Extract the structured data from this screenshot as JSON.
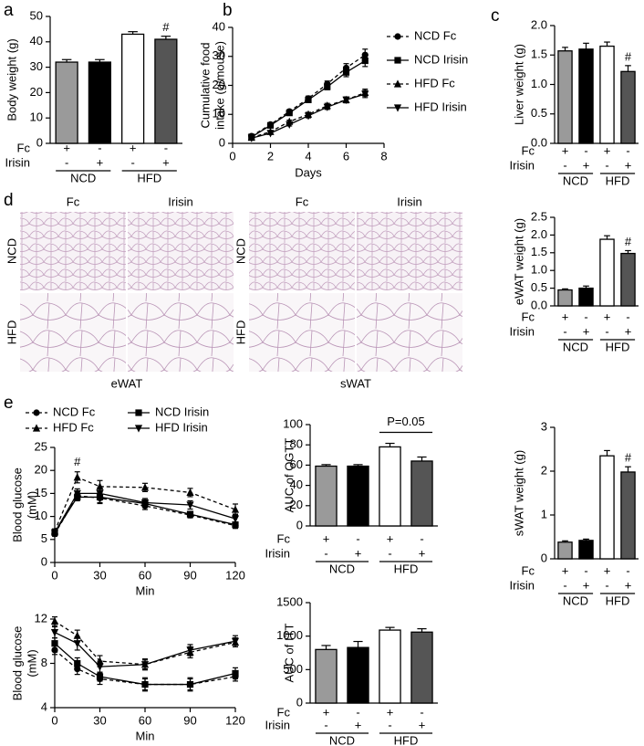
{
  "histology": {
    "panel": "d",
    "panels": [
      {
        "tissue": "eWAT",
        "columns": [
          "Fc",
          "Irisin"
        ],
        "rows": [
          "NCD",
          "HFD"
        ]
      },
      {
        "tissue": "sWAT",
        "columns": [
          "Fc",
          "Irisin"
        ],
        "rows": [
          "NCD",
          "HFD"
        ]
      }
    ]
  },
  "chart_data": [
    {
      "type": "bar",
      "panel": "a",
      "ylabel": "Body weight (g)",
      "values": [
        32,
        32,
        43,
        41
      ],
      "errors": [
        1,
        1,
        1,
        1.2
      ],
      "colors": [
        "#9a9a9a",
        "#000000",
        "#ffffff",
        "#555555"
      ],
      "ylim": [
        0,
        50
      ],
      "yticks": [
        0,
        10,
        20,
        30,
        40,
        50
      ],
      "treatments": [
        {
          "name": "Fc",
          "marks": [
            "+",
            "-",
            "+",
            "-"
          ]
        },
        {
          "name": "Irisin",
          "marks": [
            "-",
            "+",
            "-",
            "+"
          ]
        }
      ],
      "groups": [
        "NCD",
        "HFD"
      ],
      "annotations": [
        {
          "text": "#",
          "index": 3
        }
      ]
    },
    {
      "type": "line",
      "panel": "b",
      "ylabel": [
        "Cumulative food",
        "intake (g/mouse)"
      ],
      "xlabel": "Days",
      "x": [
        1,
        2,
        3,
        4,
        5,
        6,
        7
      ],
      "xlim": [
        0,
        8
      ],
      "xticks": [
        0,
        2,
        4,
        6,
        8
      ],
      "ylim": [
        0,
        40
      ],
      "yticks": [
        0,
        10,
        20,
        30,
        40
      ],
      "legend": "right",
      "series": [
        {
          "name": "NCD Fc",
          "color": "#000000",
          "marker": "circle",
          "dash": true,
          "values": [
            2.5,
            6.5,
            11,
            15.5,
            20.5,
            26,
            30.5
          ],
          "errors": [
            0.3,
            0.4,
            0.6,
            0.8,
            1,
            1.5,
            2
          ]
        },
        {
          "name": "NCD Irisin",
          "color": "#000000",
          "marker": "square",
          "dash": false,
          "values": [
            2.2,
            6.2,
            10.5,
            15,
            19.5,
            24.5,
            28.5
          ],
          "errors": [
            0.3,
            0.4,
            0.6,
            0.8,
            1,
            1.5,
            2
          ]
        },
        {
          "name": "HFD Fc",
          "color": "#000000",
          "marker": "triangle",
          "dash": true,
          "values": [
            2,
            4,
            7.5,
            10,
            13,
            15,
            17.5
          ],
          "errors": [
            0.2,
            0.3,
            0.5,
            0.7,
            0.8,
            1,
            1.2
          ]
        },
        {
          "name": "HFD Irisin",
          "color": "#000000",
          "marker": "triangle-down",
          "dash": false,
          "values": [
            1.8,
            3.5,
            6.5,
            9.5,
            12.5,
            15,
            17
          ],
          "errors": [
            0.2,
            0.3,
            0.5,
            0.7,
            0.8,
            1,
            1.2
          ]
        }
      ]
    },
    {
      "type": "bar",
      "panel": "c",
      "ylabel": "Liver weight (g)",
      "values": [
        1.57,
        1.6,
        1.65,
        1.22
      ],
      "errors": [
        0.06,
        0.1,
        0.07,
        0.1
      ],
      "colors": [
        "#9a9a9a",
        "#000000",
        "#ffffff",
        "#555555"
      ],
      "ylim": [
        0,
        2
      ],
      "yticks": [
        {
          "value": 0,
          "label": "0.0"
        },
        0.5,
        {
          "value": 1,
          "label": "1.0"
        },
        1.5,
        {
          "value": 2,
          "label": "2.0"
        }
      ],
      "treatments": [
        {
          "name": "Fc",
          "marks": [
            "+",
            "-",
            "+",
            "-"
          ]
        },
        {
          "name": "Irisin",
          "marks": [
            "-",
            "+",
            "-",
            "+"
          ]
        }
      ],
      "groups": [
        "NCD",
        "HFD"
      ],
      "annotations": [
        {
          "text": "#",
          "index": 3
        }
      ]
    },
    {
      "type": "bar",
      "ylabel": "eWAT weight (g)",
      "values": [
        0.45,
        0.5,
        1.88,
        1.48
      ],
      "errors": [
        0.03,
        0.06,
        0.1,
        0.08
      ],
      "colors": [
        "#9a9a9a",
        "#000000",
        "#ffffff",
        "#555555"
      ],
      "ylim": [
        0,
        2.5
      ],
      "yticks": [
        {
          "value": 0,
          "label": "0.0"
        },
        0.5,
        {
          "value": 1,
          "label": "1.0"
        },
        1.5,
        {
          "value": 2,
          "label": "2.0"
        },
        2.5
      ],
      "treatments": [
        {
          "name": "Fc",
          "marks": [
            "+",
            "-",
            "+",
            "-"
          ]
        },
        {
          "name": "Irisin",
          "marks": [
            "-",
            "+",
            "-",
            "+"
          ]
        }
      ],
      "groups": [
        "NCD",
        "HFD"
      ],
      "annotations": [
        {
          "text": "#",
          "index": 3
        }
      ]
    },
    {
      "type": "line",
      "panel": "e",
      "ylabel": [
        "Blood glucose",
        "(mM)"
      ],
      "xlabel": "Min",
      "x": [
        0,
        15,
        30,
        60,
        90,
        120
      ],
      "xlim": [
        0,
        120
      ],
      "xticks": [
        0,
        30,
        60,
        90,
        120
      ],
      "ylim": [
        0,
        25
      ],
      "yticks": [
        0,
        5,
        10,
        15,
        20,
        25
      ],
      "legend": "top",
      "annotations": [
        {
          "text": "#",
          "index": 1
        }
      ],
      "series": [
        {
          "name": "NCD Fc",
          "color": "#000000",
          "marker": "circle",
          "dash": true,
          "values": [
            6.2,
            14.5,
            14,
            12.3,
            10.3,
            8
          ],
          "errors": [
            0.5,
            0.8,
            1.2,
            0.8,
            0.6,
            0.6
          ]
        },
        {
          "name": "HFD Fc",
          "color": "#000000",
          "marker": "triangle",
          "dash": true,
          "values": [
            6.8,
            18.5,
            16.5,
            16.3,
            15.2,
            11.5
          ],
          "errors": [
            0.5,
            1.2,
            1.3,
            0.9,
            0.9,
            1.2
          ]
        },
        {
          "name": "NCD Irisin",
          "color": "#000000",
          "marker": "square",
          "dash": false,
          "values": [
            6.5,
            14.2,
            14.2,
            12.8,
            10.5,
            8.2
          ],
          "errors": [
            0.5,
            0.8,
            1.2,
            0.8,
            0.6,
            0.6
          ]
        },
        {
          "name": "HFD Irisin",
          "color": "#000000",
          "marker": "triangle-down",
          "dash": false,
          "values": [
            6.5,
            15,
            15,
            13,
            12.5,
            9.5
          ],
          "errors": [
            0.5,
            1,
            1.3,
            0.9,
            0.9,
            1
          ]
        }
      ]
    },
    {
      "type": "bar",
      "ylabel": "AUC of OGTT",
      "values": [
        59,
        59,
        78,
        64
      ],
      "errors": [
        1.5,
        1.5,
        3.5,
        4
      ],
      "colors": [
        "#9a9a9a",
        "#000000",
        "#ffffff",
        "#555555"
      ],
      "ylim": [
        0,
        100
      ],
      "yticks": [
        0,
        20,
        40,
        60,
        80,
        100
      ],
      "treatments": [
        {
          "name": "Fc",
          "marks": [
            "+",
            "-",
            "+",
            "-"
          ]
        },
        {
          "name": "Irisin",
          "marks": [
            "-",
            "+",
            "-",
            "+"
          ]
        }
      ],
      "groups": [
        "NCD",
        "HFD"
      ],
      "annotations": [
        {
          "text": "P=0.05",
          "bracket": [
            2,
            3
          ]
        }
      ]
    },
    {
      "type": "bar",
      "ylabel": "sWAT weight (g)",
      "values": [
        0.38,
        0.42,
        2.35,
        1.98
      ],
      "errors": [
        0.03,
        0.03,
        0.12,
        0.12
      ],
      "colors": [
        "#9a9a9a",
        "#000000",
        "#ffffff",
        "#555555"
      ],
      "ylim": [
        0,
        3
      ],
      "yticks": [
        0,
        1,
        2,
        3
      ],
      "treatments": [
        {
          "name": "Fc",
          "marks": [
            "+",
            "-",
            "+",
            "-"
          ]
        },
        {
          "name": "Irisin",
          "marks": [
            "-",
            "+",
            "-",
            "+"
          ]
        }
      ],
      "groups": [
        "NCD",
        "HFD"
      ],
      "annotations": [
        {
          "text": "#",
          "index": 3
        }
      ]
    },
    {
      "type": "line",
      "ylabel": [
        "Blood glucose",
        "(mM)"
      ],
      "xlabel": "Min",
      "x": [
        0,
        15,
        30,
        60,
        90,
        120
      ],
      "xlim": [
        0,
        120
      ],
      "xticks": [
        0,
        30,
        60,
        90,
        120
      ],
      "ylim": [
        4,
        12
      ],
      "yticks": [
        4,
        8,
        12
      ],
      "series": [
        {
          "color": "#000000",
          "marker": "circle",
          "dash": true,
          "values": [
            9.2,
            7.5,
            6.6,
            6.1,
            6.1,
            6.8
          ],
          "errors": [
            0.4,
            0.5,
            0.5,
            0.5,
            0.5,
            0.4
          ]
        },
        {
          "color": "#000000",
          "marker": "triangle",
          "dash": true,
          "values": [
            11.8,
            10.5,
            8.2,
            7.9,
            9,
            9.9
          ],
          "errors": [
            0.4,
            0.5,
            0.5,
            0.4,
            0.5,
            0.4
          ]
        },
        {
          "color": "#000000",
          "marker": "square",
          "dash": false,
          "values": [
            9.8,
            8,
            6.8,
            6.1,
            6.1,
            7.1
          ],
          "errors": [
            0.5,
            0.5,
            0.4,
            0.6,
            0.6,
            0.5
          ]
        },
        {
          "color": "#000000",
          "marker": "triangle-down",
          "dash": false,
          "values": [
            10.8,
            9.8,
            7.7,
            7.9,
            9.2,
            10
          ],
          "errors": [
            0.5,
            0.6,
            0.5,
            0.5,
            0.5,
            0.5
          ]
        }
      ]
    },
    {
      "type": "bar",
      "ylabel": "AUC of ITT",
      "values": [
        800,
        830,
        1090,
        1060
      ],
      "errors": [
        60,
        90,
        40,
        50
      ],
      "colors": [
        "#9a9a9a",
        "#000000",
        "#ffffff",
        "#555555"
      ],
      "ylim": [
        0,
        1500
      ],
      "yticks": [
        0,
        500,
        1000,
        1500
      ],
      "treatments": [
        {
          "name": "Fc",
          "marks": [
            "+",
            "-",
            "+",
            "-"
          ]
        },
        {
          "name": "Irisin",
          "marks": [
            "-",
            "+",
            "-",
            "+"
          ]
        }
      ],
      "groups": [
        "NCD",
        "HFD"
      ]
    }
  ]
}
